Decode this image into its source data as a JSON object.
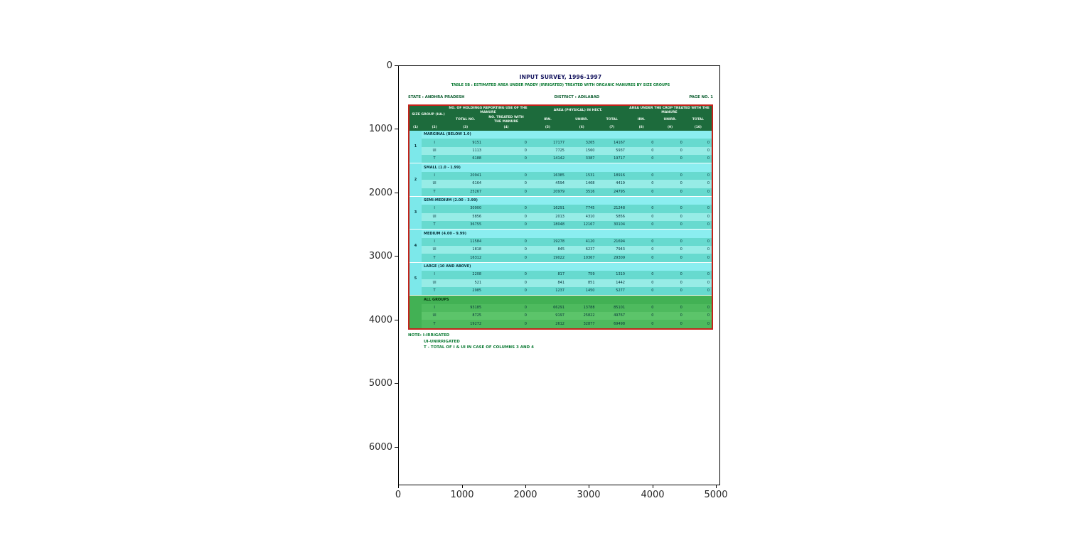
{
  "axes": {
    "xticks": [
      "0",
      "1000",
      "2000",
      "3000",
      "4000",
      "5000"
    ],
    "yticks": [
      "0",
      "1000",
      "2000",
      "3000",
      "4000",
      "5000",
      "6000"
    ]
  },
  "doc": {
    "title": "INPUT SURVEY, 1996-1997",
    "subtitle": "TABLE 5B : ESTIMATED AREA UNDER PADDY (IRRIGATED) TREATED WITH ORGANIC MANURES BY SIZE GROUPS",
    "state_line": {
      "state": "STATE : ANDHRA PRADESH",
      "district": "DISTRICT : ADILABAD",
      "page": "PAGE NO. 1"
    },
    "table": {
      "header": {
        "size_group": "SIZE GROUP (HA.)",
        "holdings": "NO. OF HOLDINGS REPORTING USE OF THE MANURE",
        "holdings_subs": [
          "TOTAL NO.",
          "NO. TREATED WITH THE MANURE"
        ],
        "area_physical": "AREA (PHYSICAL) IN HECT.",
        "area_physical_subs": [
          "IRN.",
          "UNIRR.",
          "TOTAL"
        ],
        "area_treated": "AREA UNDER THE CROP TREATED WITH THE MANURE",
        "area_treated_subs": [
          "IRN.",
          "UNIRR.",
          "TOTAL"
        ],
        "col_numbers": [
          "(1)",
          "(2)",
          "(3)",
          "(4)",
          "(5)",
          "(6)",
          "(7)",
          "(8)",
          "(9)",
          "(10)"
        ]
      },
      "groups": [
        {
          "serial": "1",
          "name": "MARGINAL (BELOW 1.0)",
          "all": false,
          "rows": [
            {
              "label": "I",
              "cols": [
                "9151",
                "0",
                "17177",
                "3265",
                "14167",
                "0",
                "0",
                "0"
              ]
            },
            {
              "label": "UI",
              "cols": [
                "1113",
                "0",
                "7725",
                "1560",
                "5937",
                "0",
                "0",
                "0"
              ]
            },
            {
              "label": "T",
              "cols": [
                "6188",
                "0",
                "14142",
                "3387",
                "19717",
                "0",
                "0",
                "0"
              ]
            }
          ]
        },
        {
          "serial": "2",
          "name": "SMALL (1.0 - 1.99)",
          "all": false,
          "rows": [
            {
              "label": "I",
              "cols": [
                "20941",
                "0",
                "16385",
                "1531",
                "18916",
                "0",
                "0",
                "0"
              ]
            },
            {
              "label": "UI",
              "cols": [
                "6164",
                "0",
                "4594",
                "1468",
                "4419",
                "0",
                "0",
                "0"
              ]
            },
            {
              "label": "T",
              "cols": [
                "25267",
                "0",
                "20979",
                "3516",
                "24795",
                "0",
                "0",
                "0"
              ]
            }
          ]
        },
        {
          "serial": "3",
          "name": "SEMI-MEDIUM (2.00 - 3.99)",
          "all": false,
          "rows": [
            {
              "label": "I",
              "cols": [
                "30900",
                "0",
                "16291",
                "7745",
                "21248",
                "0",
                "0",
                "0"
              ]
            },
            {
              "label": "UI",
              "cols": [
                "5856",
                "0",
                "2013",
                "4310",
                "5856",
                "0",
                "0",
                "0"
              ]
            },
            {
              "label": "T",
              "cols": [
                "36755",
                "0",
                "18048",
                "12167",
                "30104",
                "0",
                "0",
                "0"
              ]
            }
          ]
        },
        {
          "serial": "4",
          "name": "MEDIUM (4.00 - 9.99)",
          "all": false,
          "rows": [
            {
              "label": "I",
              "cols": [
                "11584",
                "0",
                "19278",
                "4120",
                "21694",
                "0",
                "0",
                "0"
              ]
            },
            {
              "label": "UI",
              "cols": [
                "1818",
                "0",
                "845",
                "6237",
                "7943",
                "0",
                "0",
                "0"
              ]
            },
            {
              "label": "T",
              "cols": [
                "16312",
                "0",
                "19022",
                "10367",
                "29309",
                "0",
                "0",
                "0"
              ]
            }
          ]
        },
        {
          "serial": "5",
          "name": "LARGE (10 AND ABOVE)",
          "all": false,
          "rows": [
            {
              "label": "I",
              "cols": [
                "2208",
                "0",
                "817",
                "759",
                "1310",
                "0",
                "0",
                "0"
              ]
            },
            {
              "label": "UI",
              "cols": [
                "521",
                "0",
                "841",
                "851",
                "1442",
                "0",
                "0",
                "0"
              ]
            },
            {
              "label": "T",
              "cols": [
                "2985",
                "0",
                "1237",
                "1450",
                "5277",
                "0",
                "0",
                "0"
              ]
            }
          ]
        },
        {
          "serial": "",
          "name": "ALL GROUPS",
          "all": true,
          "rows": [
            {
              "label": "I",
              "cols": [
                "93185",
                "0",
                "66291",
                "13788",
                "85101",
                "0",
                "0",
                "0"
              ]
            },
            {
              "label": "UI",
              "cols": [
                "8725",
                "0",
                "9197",
                "25822",
                "49767",
                "0",
                "0",
                "0"
              ]
            },
            {
              "label": "T",
              "cols": [
                "19272",
                "0",
                "2612",
                "32877",
                "69498",
                "0",
                "0",
                "0"
              ]
            }
          ]
        }
      ]
    },
    "notes": [
      "NOTE: I-IRRIGATED",
      "UI-UNIRRIGATED",
      "T - TOTAL OF I & UI IN CASE OF COLUMNS 3 AND 4"
    ],
    "colors": {
      "header_bg": "#1d6b3c",
      "band_cyan": "#8beef0",
      "row_teal_dark": "#67dacf",
      "row_teal_light": "#97ece6",
      "all_groups_green": "#4eba5e",
      "border_red": "#c4231b",
      "note_green": "#0b7a33",
      "title_navy": "#14145e"
    }
  }
}
